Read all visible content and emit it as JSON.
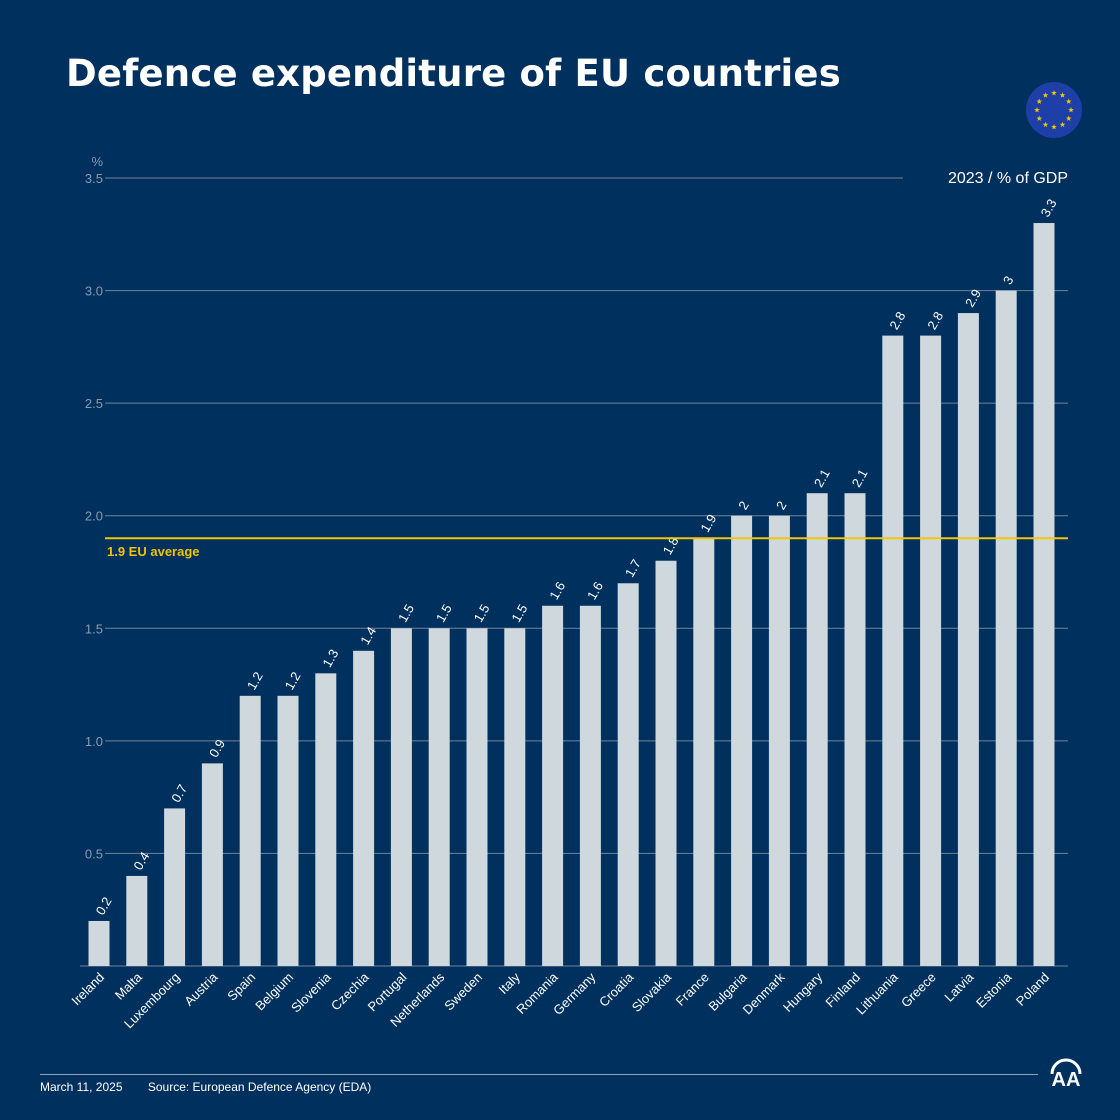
{
  "title": "Defence expenditure of EU countries",
  "footer": {
    "date": "March 11, 2025",
    "source": "Source: European Defence Agency (EDA)"
  },
  "logos": {
    "eu_flag": "eu-flag-icon",
    "agency": "AA"
  },
  "colors": {
    "background": "#00305e",
    "bar": "#cfd8dc",
    "average_line": "#f2c500",
    "grid": "#6f8299",
    "tick": "#8a9bb0"
  },
  "chart_data": {
    "type": "bar",
    "title": "Defence expenditure of EU countries",
    "subtitle": "2023 / % of GDP",
    "ylabel": "%",
    "xlabel": "",
    "ylim": [
      0,
      3.5
    ],
    "yticks": [
      "0.5",
      "1.0",
      "1.5",
      "2.0",
      "2.5",
      "3.0",
      "3.5"
    ],
    "grid": true,
    "categories": [
      "Ireland",
      "Malta",
      "Luxembourg",
      "Austria",
      "Spain",
      "Belgium",
      "Slovenia",
      "Czechia",
      "Portugal",
      "Netherlands",
      "Sweden",
      "Italy",
      "Romania",
      "Germany",
      "Croatia",
      "Slovakia",
      "France",
      "Bulgaria",
      "Denmark",
      "Hungary",
      "Finland",
      "Lithuania",
      "Greece",
      "Latvia",
      "Estonia",
      "Poland"
    ],
    "values": [
      0.2,
      0.4,
      0.7,
      0.9,
      1.2,
      1.2,
      1.3,
      1.4,
      1.5,
      1.5,
      1.5,
      1.5,
      1.6,
      1.6,
      1.7,
      1.8,
      1.9,
      2,
      2,
      2.1,
      2.1,
      2.8,
      2.8,
      2.9,
      3,
      3.3
    ],
    "data_labels": [
      "0.2",
      "0.4",
      "0.7",
      "0.9",
      "1.2",
      "1.2",
      "1.3",
      "1.4",
      "1.5",
      "1.5",
      "1.5",
      "1.5",
      "1.6",
      "1.6",
      "1.7",
      "1.8",
      "1.9",
      "2",
      "2",
      "2.1",
      "2.1",
      "2.8",
      "2.8",
      "2.9",
      "3",
      "3.3"
    ],
    "reference_line": {
      "value": 1.9,
      "label": "1.9 EU average"
    }
  }
}
